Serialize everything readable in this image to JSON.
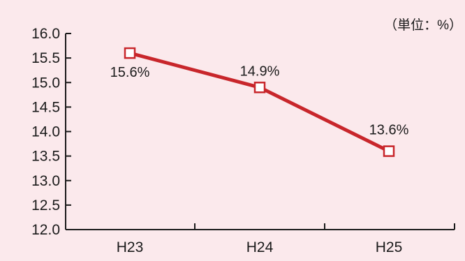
{
  "chart_data": {
    "type": "line",
    "unit_label": "（単位：%）",
    "categories": [
      "H23",
      "H24",
      "H25"
    ],
    "y_ticks": [
      "16.0",
      "15.5",
      "15.0",
      "14.5",
      "14.0",
      "13.5",
      "13.0",
      "12.5",
      "12.0"
    ],
    "ylim": [
      12.0,
      16.0
    ],
    "grid": false,
    "series": [
      {
        "values": [
          15.6,
          14.9,
          13.6
        ],
        "data_labels": [
          "15.6%",
          "14.9%",
          "13.6%"
        ],
        "color": "#C8262B"
      }
    ]
  },
  "colors": {
    "background": "#FBE9EC",
    "axis": "#1a1a1a",
    "line": "#C8262B",
    "marker_fill": "#FFFFFF"
  }
}
